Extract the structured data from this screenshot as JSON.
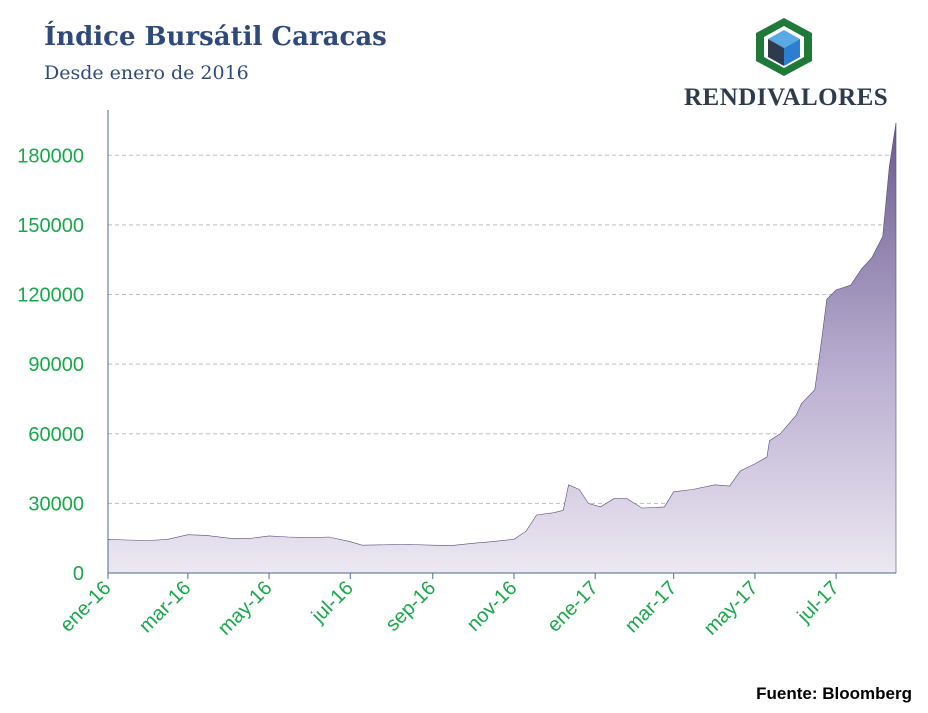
{
  "header": {
    "title": "Índice Bursátil Caracas",
    "subtitle": "Desde enero de 2016"
  },
  "logo": {
    "text": "RENDIVALORES"
  },
  "source": "Fuente: Bloomberg",
  "colors": {
    "title": "#2f4a7a",
    "axis_labels": "#1aa64a",
    "area_top": "#6b5a8e",
    "area_bottom": "#ece8f2",
    "grid": "#bfbfbf",
    "logo_green": "#1f7a3a",
    "logo_blue": "#2a7fd0",
    "logo_dark": "#2e3b4c"
  },
  "chart_data": {
    "type": "area",
    "title": "Índice Bursátil Caracas",
    "subtitle": "Desde enero de 2016",
    "xlabel": "",
    "ylabel": "",
    "ylim": [
      0,
      180000
    ],
    "yticks": [
      0,
      30000,
      60000,
      90000,
      120000,
      150000,
      180000
    ],
    "ytick_labels": [
      "0",
      "30000",
      "60000",
      "90000",
      "120000",
      "150000",
      "180000"
    ],
    "xlim": [
      "2016-01-01",
      "2017-08-15"
    ],
    "xticks": [
      "2016-01-01",
      "2016-03-01",
      "2016-05-01",
      "2016-07-01",
      "2016-09-01",
      "2016-11-01",
      "2017-01-01",
      "2017-03-01",
      "2017-05-01",
      "2017-07-01"
    ],
    "xtick_labels": [
      "ene-16",
      "mar-16",
      "may-16",
      "jul-16",
      "sep-16",
      "nov-16",
      "ene-17",
      "mar-17",
      "may-17",
      "jul-17"
    ],
    "grid": "horizontal dashed",
    "legend": "none",
    "series": [
      {
        "points": [
          [
            "2016-01-01",
            14500
          ],
          [
            "2016-01-15",
            14200
          ],
          [
            "2016-02-01",
            14000
          ],
          [
            "2016-02-15",
            14500
          ],
          [
            "2016-03-01",
            16500
          ],
          [
            "2016-03-15",
            16200
          ],
          [
            "2016-04-01",
            15000
          ],
          [
            "2016-04-15",
            14800
          ],
          [
            "2016-05-01",
            16000
          ],
          [
            "2016-05-15",
            15500
          ],
          [
            "2016-06-01",
            15200
          ],
          [
            "2016-06-15",
            15500
          ],
          [
            "2016-07-01",
            13500
          ],
          [
            "2016-07-10",
            12000
          ],
          [
            "2016-08-01",
            12200
          ],
          [
            "2016-08-15",
            12300
          ],
          [
            "2016-09-01",
            12000
          ],
          [
            "2016-09-15",
            11800
          ],
          [
            "2016-10-01",
            12800
          ],
          [
            "2016-10-15",
            13500
          ],
          [
            "2016-11-01",
            14500
          ],
          [
            "2016-11-10",
            18000
          ],
          [
            "2016-11-18",
            25000
          ],
          [
            "2016-12-01",
            26000
          ],
          [
            "2016-12-08",
            27000
          ],
          [
            "2016-12-12",
            38000
          ],
          [
            "2016-12-20",
            36000
          ],
          [
            "2016-12-27",
            30000
          ],
          [
            "2017-01-05",
            28500
          ],
          [
            "2017-01-15",
            32000
          ],
          [
            "2017-01-25",
            32000
          ],
          [
            "2017-02-05",
            28000
          ],
          [
            "2017-02-15",
            28200
          ],
          [
            "2017-02-22",
            28500
          ],
          [
            "2017-03-01",
            35000
          ],
          [
            "2017-03-15",
            36000
          ],
          [
            "2017-04-01",
            38000
          ],
          [
            "2017-04-12",
            37500
          ],
          [
            "2017-04-20",
            44000
          ],
          [
            "2017-05-01",
            47000
          ],
          [
            "2017-05-10",
            50000
          ],
          [
            "2017-05-12",
            57000
          ],
          [
            "2017-05-20",
            60000
          ],
          [
            "2017-06-01",
            68000
          ],
          [
            "2017-06-05",
            73000
          ],
          [
            "2017-06-15",
            79000
          ],
          [
            "2017-06-20",
            100000
          ],
          [
            "2017-06-24",
            118000
          ],
          [
            "2017-07-01",
            122000
          ],
          [
            "2017-07-12",
            124000
          ],
          [
            "2017-07-20",
            131000
          ],
          [
            "2017-07-28",
            136000
          ],
          [
            "2017-08-05",
            145000
          ],
          [
            "2017-08-10",
            175000
          ],
          [
            "2017-08-15",
            194000
          ]
        ]
      }
    ]
  }
}
